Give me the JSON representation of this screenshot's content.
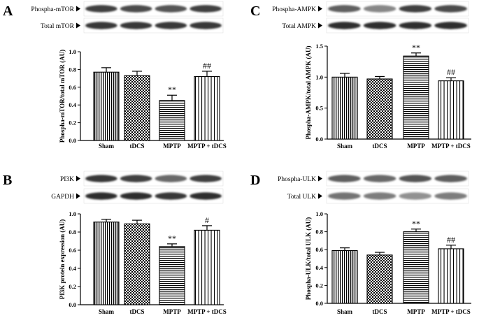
{
  "patterns": [
    "vertical",
    "checker",
    "horizontal",
    "vertical-sparse"
  ],
  "chart_data": [
    {
      "panel": "A",
      "type": "bar",
      "blots": [
        "Phospha-mTOR",
        "Total mTOR"
      ],
      "categories": [
        "Sham",
        "tDCS",
        "MPTP",
        "MPTP + tDCS"
      ],
      "values": [
        0.77,
        0.73,
        0.45,
        0.72
      ],
      "errors": [
        0.05,
        0.05,
        0.06,
        0.06
      ],
      "significance": [
        "",
        "",
        "**",
        "##"
      ],
      "ylabel": "Phospha-mTOR/total mTOR (AU)",
      "ylim": [
        0.0,
        1.0
      ],
      "yticks": [
        "0.0",
        "0.2",
        "0.4",
        "0.6",
        "0.8",
        "1.0"
      ]
    },
    {
      "panel": "C",
      "type": "bar",
      "blots": [
        "Phospha-AMPK",
        "Total AMPK"
      ],
      "categories": [
        "Sham",
        "tDCS",
        "MPTP",
        "MPTP + tDCS"
      ],
      "values": [
        1.0,
        0.97,
        1.34,
        0.94
      ],
      "errors": [
        0.06,
        0.04,
        0.05,
        0.05
      ],
      "significance": [
        "",
        "",
        "**",
        "##"
      ],
      "ylabel": "Phospha-AMPK/total AMPK (AU)",
      "ylim": [
        0.0,
        1.5
      ],
      "yticks": [
        "0.0",
        "0.5",
        "1.0",
        "1.5"
      ]
    },
    {
      "panel": "B",
      "type": "bar",
      "blots": [
        "PI3K",
        "GAPDH"
      ],
      "categories": [
        "Sham",
        "tDCS",
        "MPTP",
        "MPTP + tDCS"
      ],
      "values": [
        0.91,
        0.89,
        0.64,
        0.82
      ],
      "errors": [
        0.03,
        0.04,
        0.03,
        0.05
      ],
      "significance": [
        "",
        "",
        "**",
        "#"
      ],
      "ylabel": "PI3K protein expression (AU)",
      "ylim": [
        0.0,
        1.0
      ],
      "yticks": [
        "0.0",
        "0.2",
        "0.4",
        "0.6",
        "0.8",
        "1.0"
      ]
    },
    {
      "panel": "D",
      "type": "bar",
      "blots": [
        "Phospha-ULK",
        "Total ULK"
      ],
      "categories": [
        "Sham",
        "tDCS",
        "MPTP",
        "MPTP + tDCS"
      ],
      "values": [
        0.59,
        0.54,
        0.8,
        0.61
      ],
      "errors": [
        0.03,
        0.03,
        0.03,
        0.04
      ],
      "significance": [
        "",
        "",
        "**",
        "##"
      ],
      "ylabel": "Phospha-ULK/total ULK (AU)",
      "ylim": [
        0.0,
        1.0
      ],
      "yticks": [
        "0.0",
        "0.2",
        "0.4",
        "0.6",
        "0.8",
        "1.0"
      ]
    }
  ]
}
